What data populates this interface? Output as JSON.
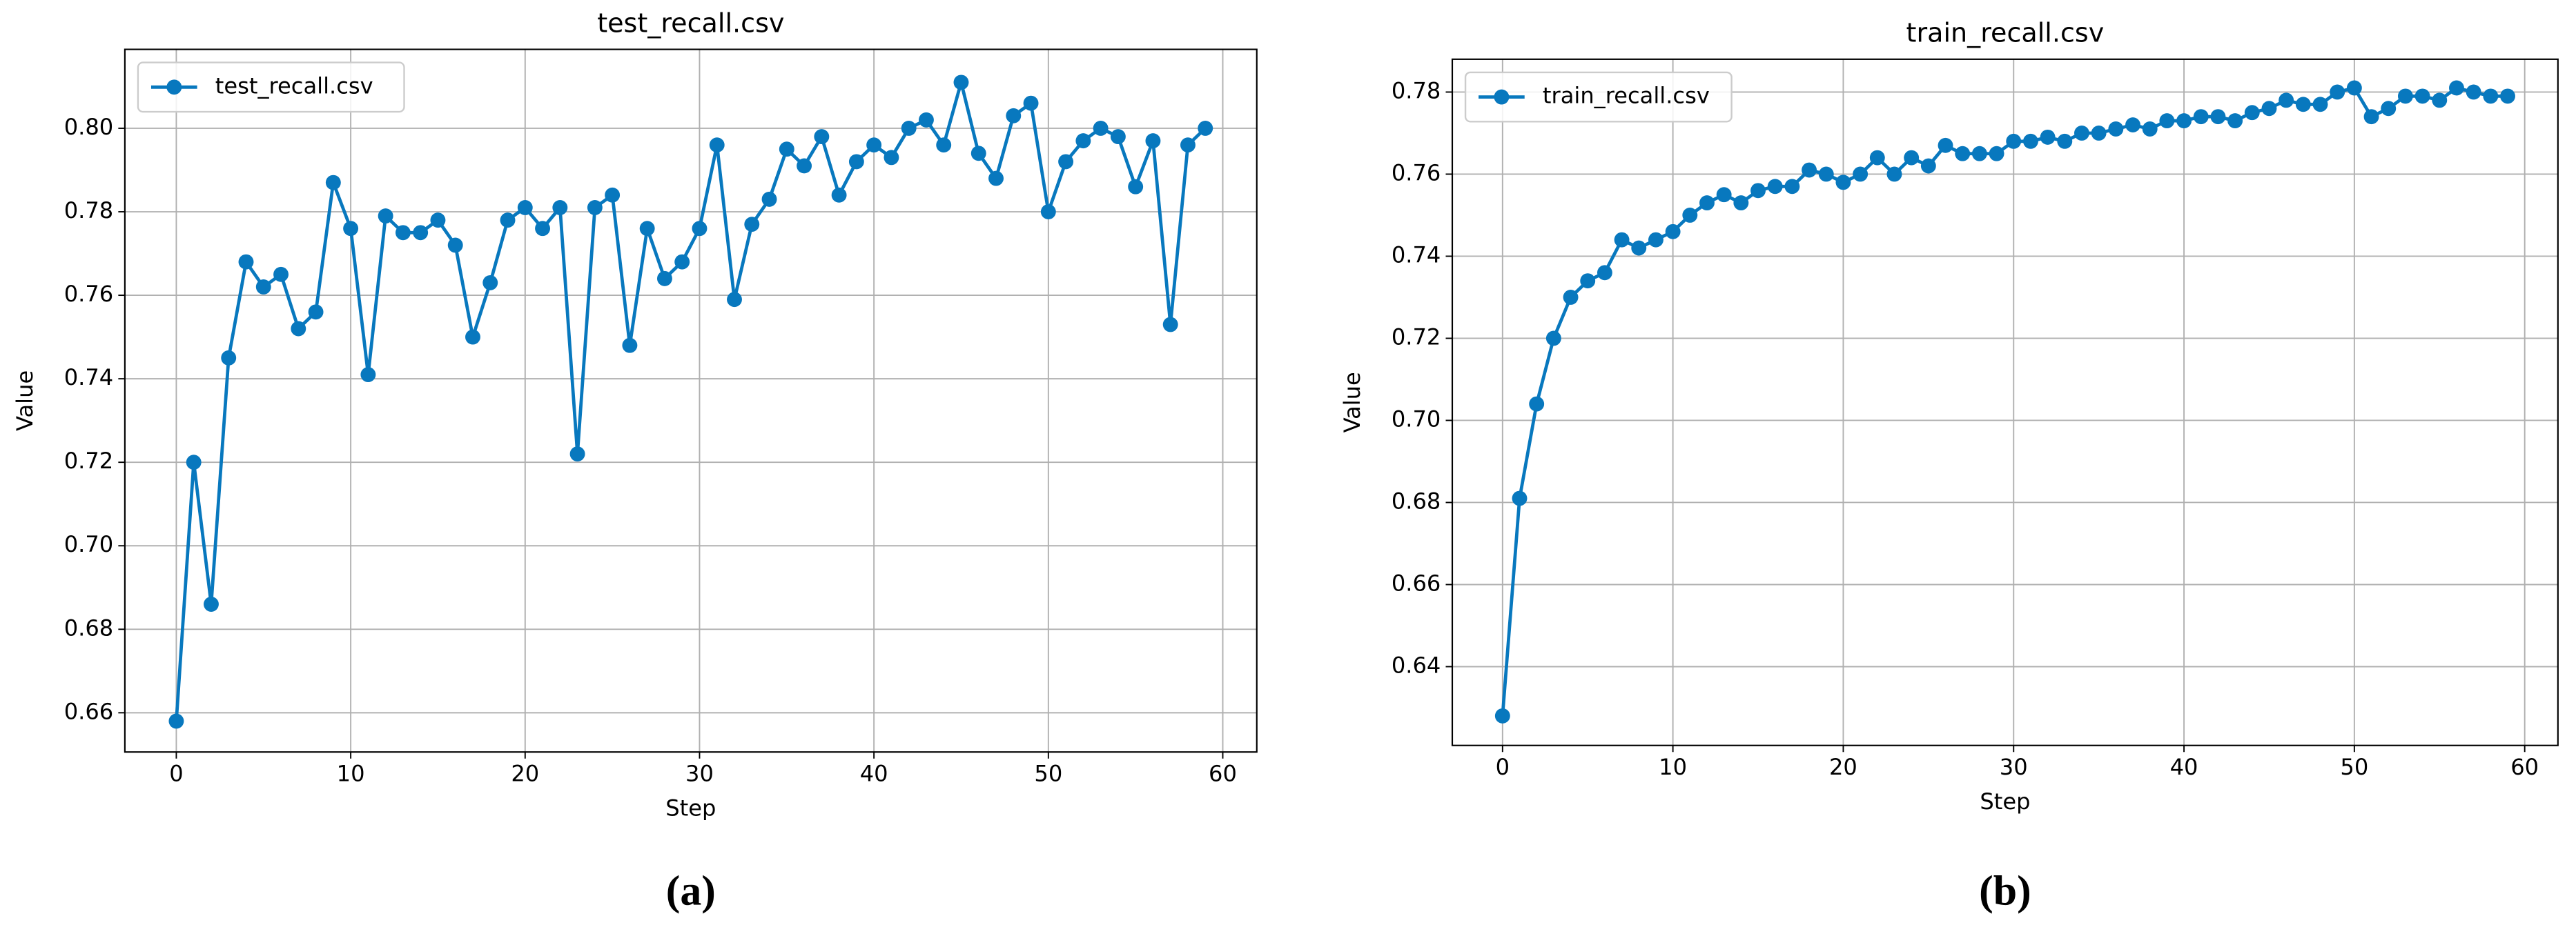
{
  "chart_data": [
    {
      "type": "line",
      "title": "test_recall.csv",
      "xlabel": "Step",
      "ylabel": "Value",
      "caption": "(a)",
      "x": [
        0,
        1,
        2,
        3,
        4,
        5,
        6,
        7,
        8,
        9,
        10,
        11,
        12,
        13,
        14,
        15,
        16,
        17,
        18,
        19,
        20,
        21,
        22,
        23,
        24,
        25,
        26,
        27,
        28,
        29,
        30,
        31,
        32,
        33,
        34,
        35,
        36,
        37,
        38,
        39,
        40,
        41,
        42,
        43,
        44,
        45,
        46,
        47,
        48,
        49,
        50,
        51,
        52,
        53,
        54,
        55,
        56,
        57,
        58,
        59
      ],
      "series": [
        {
          "name": "test_recall.csv",
          "color": "#0878be",
          "values": [
            0.658,
            0.72,
            0.686,
            0.745,
            0.768,
            0.762,
            0.765,
            0.752,
            0.756,
            0.787,
            0.776,
            0.741,
            0.779,
            0.775,
            0.775,
            0.778,
            0.772,
            0.75,
            0.763,
            0.778,
            0.781,
            0.776,
            0.781,
            0.722,
            0.781,
            0.784,
            0.748,
            0.776,
            0.764,
            0.768,
            0.776,
            0.796,
            0.759,
            0.777,
            0.783,
            0.795,
            0.791,
            0.798,
            0.784,
            0.792,
            0.796,
            0.793,
            0.8,
            0.802,
            0.796,
            0.811,
            0.794,
            0.788,
            0.803,
            0.806,
            0.78,
            0.792,
            0.797,
            0.8,
            0.798,
            0.786,
            0.797,
            0.753,
            0.796,
            0.8
          ]
        }
      ],
      "xlim": [
        -2.95,
        61.95
      ],
      "ylim": [
        0.6506,
        0.8189
      ],
      "xticks": [
        0,
        10,
        20,
        30,
        40,
        50,
        60
      ],
      "yticks": [
        0.66,
        0.68,
        {
          "value": 0.7,
          "label": "0.70"
        },
        0.72,
        0.74,
        0.76,
        0.78,
        {
          "value": 0.8,
          "label": "0.80"
        }
      ],
      "grid": true,
      "legend": "upper left"
    },
    {
      "type": "line",
      "title": "train_recall.csv",
      "xlabel": "Step",
      "ylabel": "Value",
      "caption": "(b)",
      "x": [
        0,
        1,
        2,
        3,
        4,
        5,
        6,
        7,
        8,
        9,
        10,
        11,
        12,
        13,
        14,
        15,
        16,
        17,
        18,
        19,
        20,
        21,
        22,
        23,
        24,
        25,
        26,
        27,
        28,
        29,
        30,
        31,
        32,
        33,
        34,
        35,
        36,
        37,
        38,
        39,
        40,
        41,
        42,
        43,
        44,
        45,
        46,
        47,
        48,
        49,
        50,
        51,
        52,
        53,
        54,
        55,
        56,
        57,
        58,
        59
      ],
      "series": [
        {
          "name": "train_recall.csv",
          "color": "#0878be",
          "values": [
            0.628,
            0.681,
            0.704,
            0.72,
            0.73,
            0.734,
            0.736,
            0.744,
            0.742,
            0.744,
            0.746,
            0.75,
            0.753,
            0.755,
            0.753,
            0.756,
            0.757,
            0.757,
            0.761,
            0.76,
            0.758,
            0.76,
            0.764,
            0.76,
            0.764,
            0.762,
            0.767,
            0.765,
            0.765,
            0.765,
            0.768,
            0.768,
            0.769,
            0.768,
            0.77,
            0.77,
            0.771,
            0.772,
            0.771,
            0.773,
            0.773,
            0.774,
            0.774,
            0.773,
            0.775,
            0.776,
            0.778,
            0.777,
            0.777,
            0.78,
            0.781,
            0.774,
            0.776,
            0.779,
            0.779,
            0.778,
            0.781,
            0.78,
            0.779,
            0.779
          ]
        }
      ],
      "xlim": [
        -2.95,
        61.95
      ],
      "ylim": [
        0.6208,
        0.788
      ],
      "xticks": [
        0,
        10,
        20,
        30,
        40,
        50,
        60
      ],
      "yticks": [
        0.64,
        0.66,
        0.68,
        {
          "value": 0.7,
          "label": "0.70"
        },
        0.72,
        0.74,
        0.76,
        0.78
      ],
      "grid": true,
      "legend": "upper left"
    }
  ]
}
